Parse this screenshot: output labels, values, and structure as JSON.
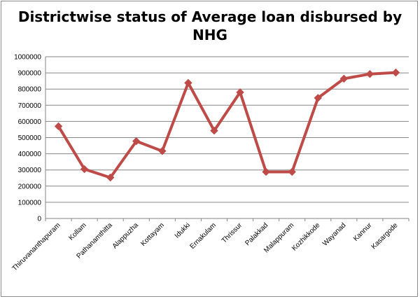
{
  "chart_data": {
    "type": "line",
    "title": "Districtwise status of  Average  loan disbursed by NHG",
    "title_lines": [
      "Districtwise status of  Average  loan disbursed by",
      "NHG"
    ],
    "xlabel": "",
    "ylabel": "",
    "ylim": [
      0,
      1000000
    ],
    "y_ticks": [
      "0",
      "100000",
      "200000",
      "300000",
      "400000",
      "500000",
      "600000",
      "700000",
      "800000",
      "900000",
      "1000000"
    ],
    "grid": true,
    "legend": "none",
    "categories": [
      "Thiruvananthapuram",
      "Kollam",
      "Pathanamthitta",
      "Alappuzha",
      "Kottayam",
      "Idukki",
      "Ernakulam",
      "Thrissur",
      "Palakkad",
      "Malappuram",
      "Kozhikkode",
      "Wayanad",
      "Kannur",
      "Kasargode"
    ],
    "series": [
      {
        "values": [
          570000,
          305000,
          253000,
          478000,
          417000,
          838000,
          543000,
          780000,
          288000,
          288000,
          745000,
          864000,
          893000,
          902000
        ],
        "color": "#be4b48"
      }
    ]
  }
}
